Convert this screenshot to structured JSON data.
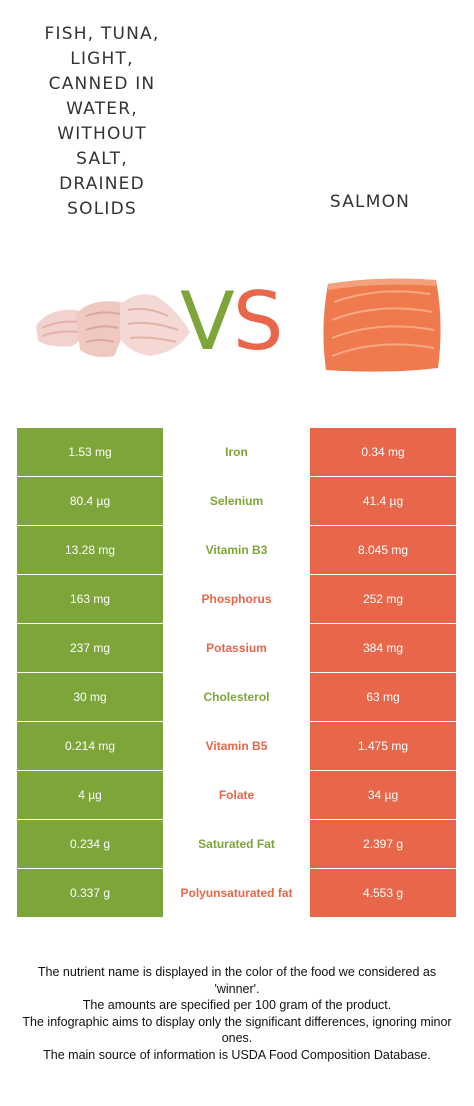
{
  "left_food": {
    "title": "Fish, tuna,\nlight,\ncanned in\nwater,\nwithout\nsalt,\ndrained\nsolids",
    "image": "tuna-chunks-image"
  },
  "right_food": {
    "title": "Salmon",
    "image": "salmon-fillet-image"
  },
  "vs": {
    "v": "V",
    "s": "S"
  },
  "colors": {
    "left": "#7da539",
    "right": "#e8664a"
  },
  "rows": [
    {
      "nutrient": "Iron",
      "left": "1.53 mg",
      "right": "0.34 mg",
      "winner": "left",
      "winner_color": "#7da539"
    },
    {
      "nutrient": "Selenium",
      "left": "80.4 µg",
      "right": "41.4 µg",
      "winner": "left",
      "winner_color": "#7da539"
    },
    {
      "nutrient": "Vitamin B3",
      "left": "13.28 mg",
      "right": "8.045 mg",
      "winner": "left",
      "winner_color": "#7da539"
    },
    {
      "nutrient": "Phosphorus",
      "left": "163 mg",
      "right": "252 mg",
      "winner": "right",
      "winner_color": "#e8664a"
    },
    {
      "nutrient": "Potassium",
      "left": "237 mg",
      "right": "384 mg",
      "winner": "right",
      "winner_color": "#e8664a"
    },
    {
      "nutrient": "Cholesterol",
      "left": "30 mg",
      "right": "63 mg",
      "winner": "left",
      "winner_color": "#7da539"
    },
    {
      "nutrient": "Vitamin B5",
      "left": "0.214 mg",
      "right": "1.475 mg",
      "winner": "right",
      "winner_color": "#e8664a"
    },
    {
      "nutrient": "Folate",
      "left": "4 µg",
      "right": "34 µg",
      "winner": "right",
      "winner_color": "#e8664a"
    },
    {
      "nutrient": "Saturated Fat",
      "left": "0.234 g",
      "right": "2.397 g",
      "winner": "left",
      "winner_color": "#7da539"
    },
    {
      "nutrient": "Polyunsaturated fat",
      "left": "0.337 g",
      "right": "4.553 g",
      "winner": "right",
      "winner_color": "#e8664a"
    }
  ],
  "footer": [
    "The nutrient name is displayed in the color of the food we considered as 'winner'.",
    "The amounts are specified per 100 gram of the product.",
    "The infographic aims to display only the significant differences, ignoring minor ones.",
    "The main source of information is USDA Food Composition Database."
  ]
}
